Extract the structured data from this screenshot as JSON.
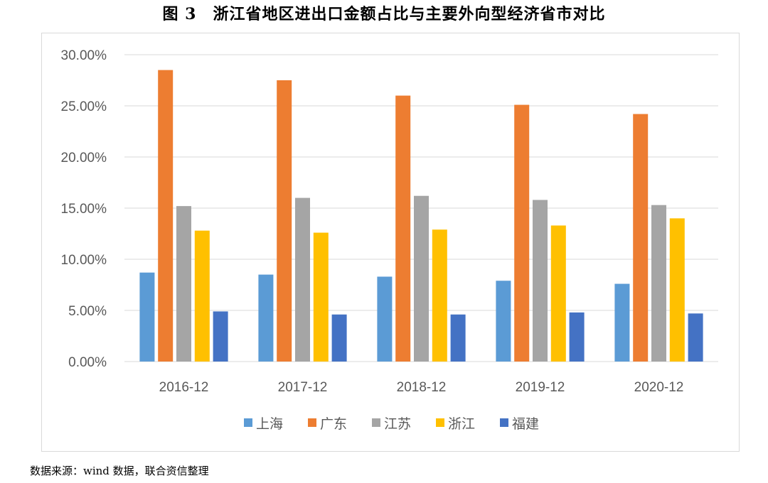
{
  "title": "图 3　浙江省地区进出口金额占比与主要外向型经济省市对比",
  "source": "数据来源：wind 数据，联合资信整理",
  "chart_data": {
    "type": "bar",
    "title": "图 3　浙江省地区进出口金额占比与主要外向型经济省市对比",
    "xlabel": "",
    "ylabel": "",
    "ylim": [
      0,
      30
    ],
    "yticks": [
      "0.00%",
      "5.00%",
      "10.00%",
      "15.00%",
      "20.00%",
      "25.00%",
      "30.00%"
    ],
    "grid": true,
    "legend": "bottom",
    "categories": [
      "2016-12",
      "2017-12",
      "2018-12",
      "2019-12",
      "2020-12"
    ],
    "series": [
      {
        "name": "上海",
        "color": "#5B9BD5",
        "values": [
          8.7,
          8.5,
          8.3,
          7.9,
          7.6
        ]
      },
      {
        "name": "广东",
        "color": "#ED7D31",
        "values": [
          28.5,
          27.5,
          26.0,
          25.1,
          24.2
        ]
      },
      {
        "name": "江苏",
        "color": "#A5A5A5",
        "values": [
          15.2,
          16.0,
          16.2,
          15.8,
          15.3
        ]
      },
      {
        "name": "浙江",
        "color": "#FFC000",
        "values": [
          12.8,
          12.6,
          12.9,
          13.3,
          14.0
        ]
      },
      {
        "name": "福建",
        "color": "#4472C4",
        "values": [
          4.9,
          4.6,
          4.6,
          4.8,
          4.7
        ]
      }
    ]
  }
}
